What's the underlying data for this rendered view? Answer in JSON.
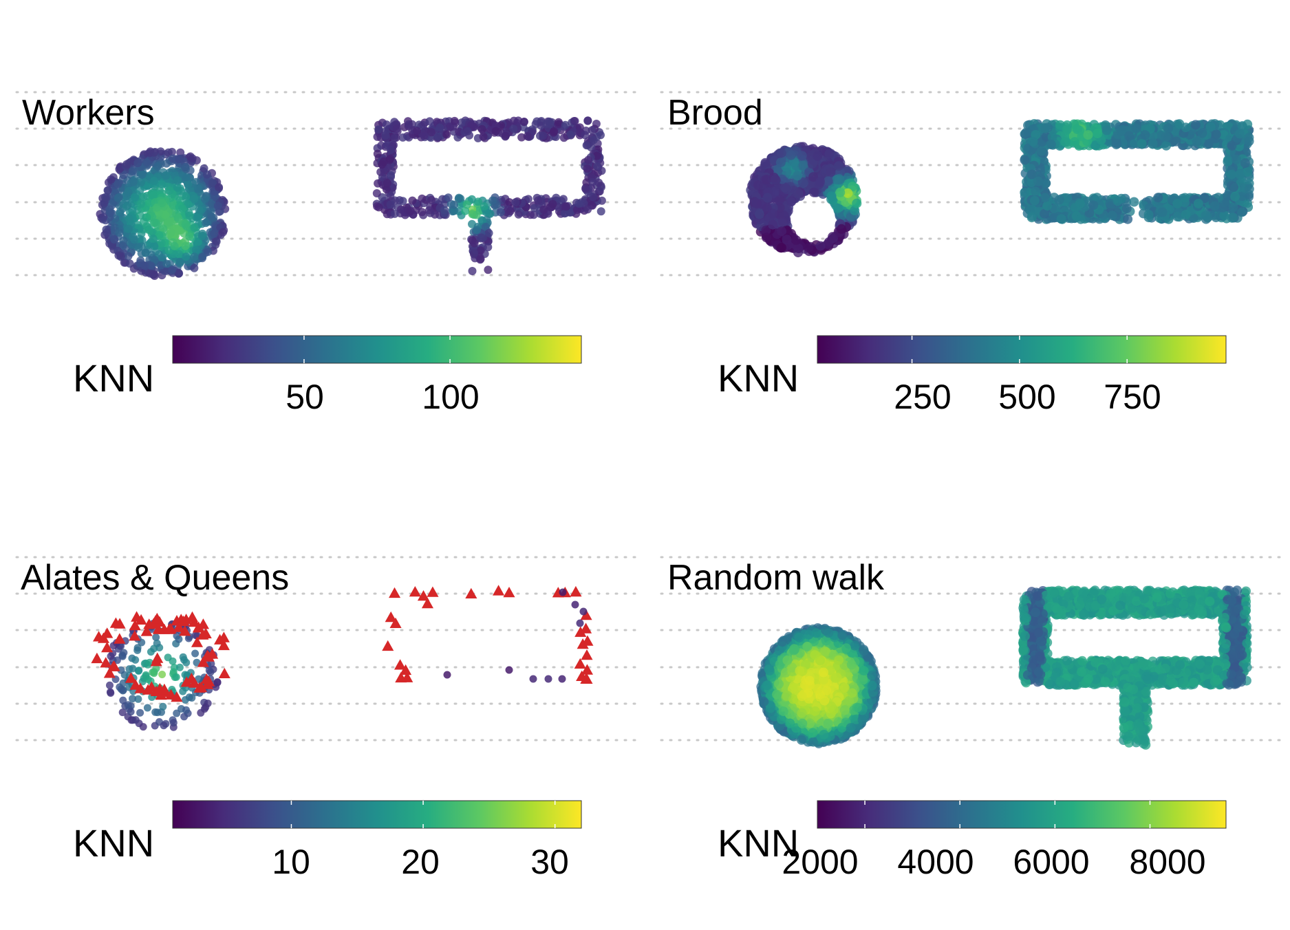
{
  "figure": {
    "colormap": [
      "#440154",
      "#472c7a",
      "#3b518b",
      "#2c718e",
      "#21908d",
      "#27ad81",
      "#5cc863",
      "#aadc32",
      "#fde725"
    ],
    "marker_colors": {
      "alate_queen": "#d62728"
    },
    "gridline_color": "#c8c8c8"
  },
  "panels": [
    {
      "title": "Workers",
      "legend": {
        "label": "KNN",
        "ticks": [
          "50",
          "100"
        ]
      },
      "chart_data": {
        "type": "scatter",
        "title": "Workers",
        "color_variable": "KNN",
        "color_range": [
          5,
          145
        ],
        "color_ticks": [
          50,
          100
        ],
        "grid": "horizontal dotted",
        "legend_placement": "bottom",
        "regions": [
          {
            "shape": "circle",
            "knn_center": 105,
            "knn_edge": 25
          },
          {
            "shape": "looped rectangle with stem",
            "knn_typical": 18,
            "knn_hotspot": 110
          }
        ]
      }
    },
    {
      "title": "Brood",
      "legend": {
        "label": "KNN",
        "ticks": [
          "250",
          "500",
          "750"
        ]
      },
      "chart_data": {
        "type": "scatter",
        "title": "Brood",
        "color_variable": "KNN",
        "color_range": [
          30,
          980
        ],
        "color_ticks": [
          250,
          500,
          750
        ],
        "grid": "horizontal dotted",
        "legend_placement": "bottom",
        "regions": [
          {
            "shape": "crescent",
            "knn_typical": 150,
            "knn_hotspot": 900
          },
          {
            "shape": "looped rectangle",
            "knn_typical": 350,
            "knn_hotspot": 620
          }
        ]
      }
    },
    {
      "title": "Alates & Queens",
      "legend": {
        "label": "KNN",
        "ticks": [
          "10",
          "20",
          "30"
        ]
      },
      "chart_data": {
        "type": "scatter",
        "title": "Alates & Queens",
        "color_variable": "KNN",
        "color_range": [
          1,
          32
        ],
        "color_ticks": [
          10,
          20,
          30
        ],
        "grid": "horizontal dotted",
        "legend_placement": "bottom",
        "markers": [
          "circle (colored by KNN)",
          "red triangle"
        ],
        "regions": [
          {
            "shape": "circle",
            "knn_center": 26,
            "knn_edge": 5
          },
          {
            "shape": "looped rectangle",
            "knn_typical": 3
          }
        ]
      }
    },
    {
      "title": "Random walk",
      "legend": {
        "label": "KNN",
        "ticks": [
          "2000",
          "4000",
          "6000",
          "8000"
        ]
      },
      "chart_data": {
        "type": "scatter",
        "title": "Random walk",
        "color_variable": "KNN",
        "color_range": [
          1000,
          9600
        ],
        "color_ticks": [
          2000,
          4000,
          6000,
          8000
        ],
        "grid": "horizontal dotted",
        "legend_placement": "bottom",
        "regions": [
          {
            "shape": "circle",
            "knn_center": 9000,
            "knn_edge": 4000
          },
          {
            "shape": "looped rectangle with stem",
            "knn_typical": 5800,
            "knn_edge": 3300
          }
        ]
      }
    }
  ]
}
